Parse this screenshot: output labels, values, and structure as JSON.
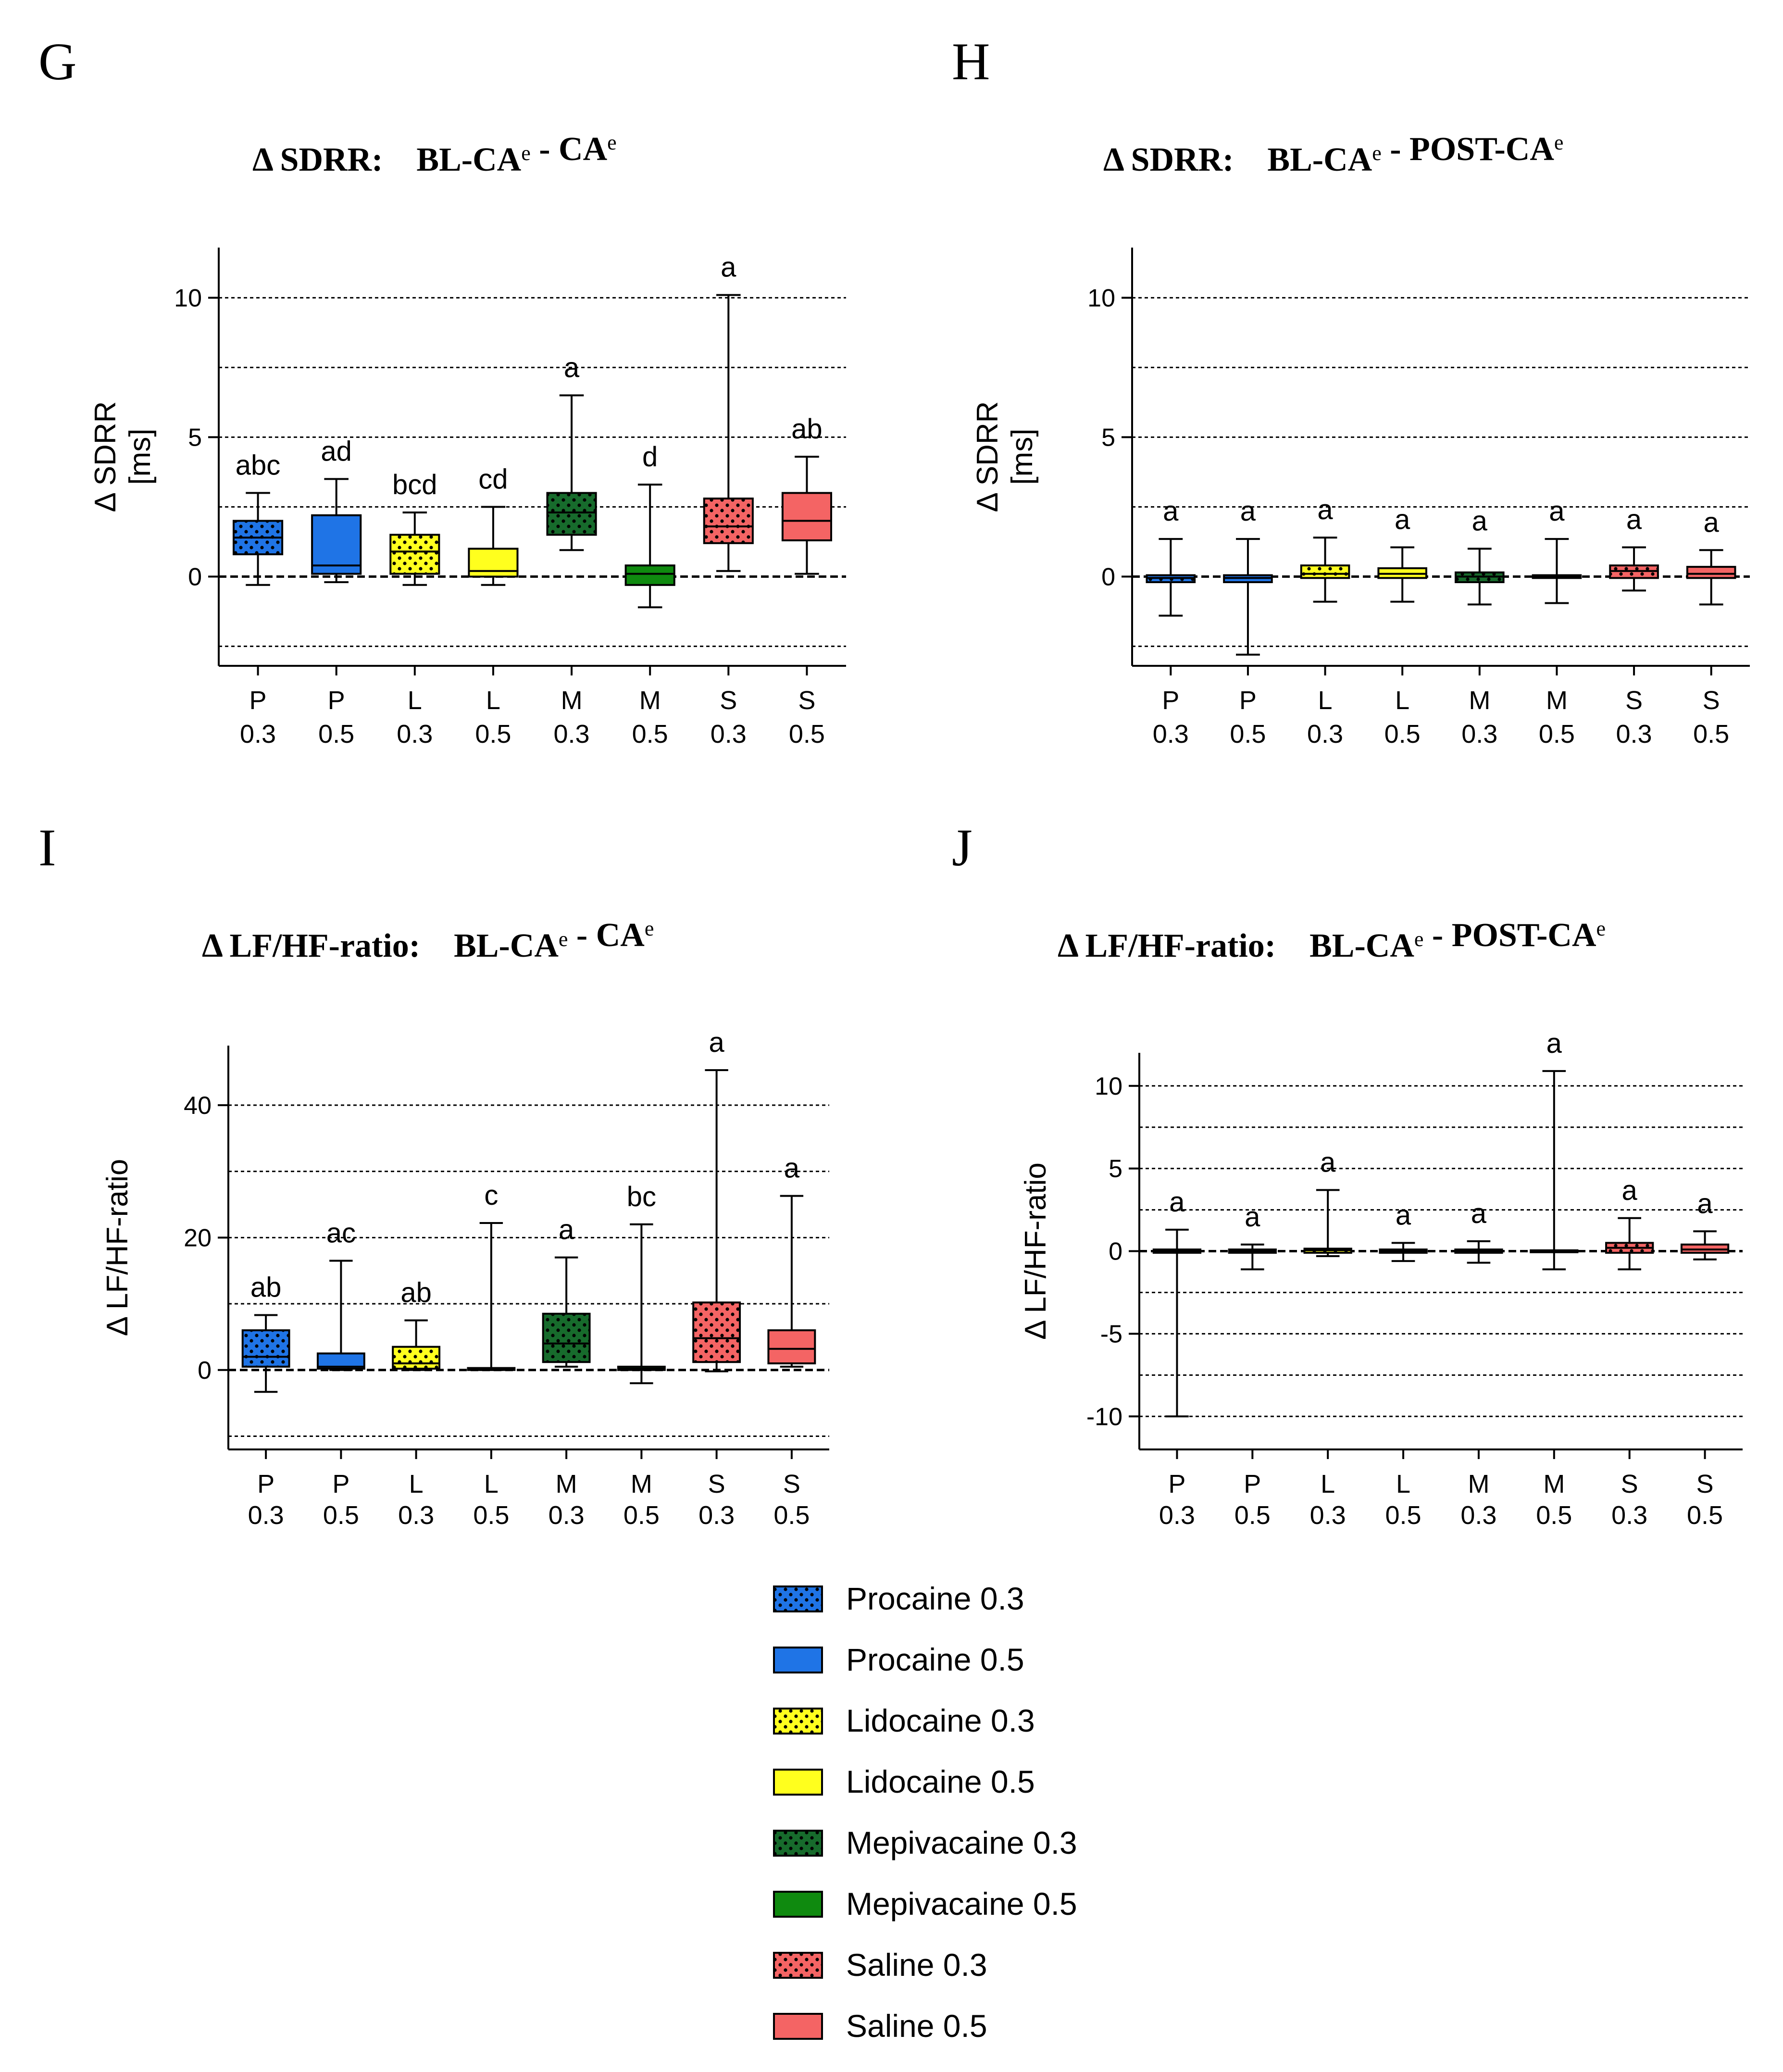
{
  "colors": {
    "procaine": "#1f74e6",
    "lidocaine": "#ffff1e",
    "mepivacaine_03": "#176b2c",
    "mepivacaine_05": "#0f8a0f",
    "saline": "#f46464",
    "grid": "#000000"
  },
  "legend": [
    {
      "label": "Procaine 0.3",
      "color": "#1f74e6",
      "dotted": true
    },
    {
      "label": "Procaine 0.5",
      "color": "#1f74e6",
      "dotted": false
    },
    {
      "label": "Lidocaine 0.3",
      "color": "#ffff1e",
      "dotted": true
    },
    {
      "label": "Lidocaine 0.5",
      "color": "#ffff1e",
      "dotted": false
    },
    {
      "label": "Mepivacaine 0.3",
      "color": "#176b2c",
      "dotted": true
    },
    {
      "label": "Mepivacaine 0.5",
      "color": "#0f8a0f",
      "dotted": false
    },
    {
      "label": "Saline 0.3",
      "color": "#f46464",
      "dotted": true
    },
    {
      "label": "Saline 0.5",
      "color": "#f46464",
      "dotted": false
    }
  ],
  "chart_data": [
    {
      "panel": "G",
      "type": "box",
      "title_main": "Δ SDRR:",
      "title_parts": [
        {
          "t": "BL-CA",
          "sup": "e"
        },
        {
          "t": " - CA",
          "sup": "e"
        }
      ],
      "ylabel_line1": "Δ SDRR",
      "ylabel_line2": "[ms]",
      "ylim": [
        -3.2,
        11.8
      ],
      "yticks": [
        0,
        5,
        10
      ],
      "ytick_labels": [
        "0",
        "5",
        "10"
      ],
      "gridlines": [
        -2.5,
        2.5,
        5,
        7.5,
        10
      ],
      "categories": [
        [
          "P",
          "0.3"
        ],
        [
          "P",
          "0.5"
        ],
        [
          "L",
          "0.3"
        ],
        [
          "L",
          "0.5"
        ],
        [
          "M",
          "0.3"
        ],
        [
          "M",
          "0.5"
        ],
        [
          "S",
          "0.3"
        ],
        [
          "S",
          "0.5"
        ]
      ],
      "boxes": [
        {
          "min": -0.3,
          "q1": 0.8,
          "median": 1.4,
          "q3": 2.0,
          "max": 3.0,
          "label": "abc"
        },
        {
          "min": -0.2,
          "q1": 0.1,
          "median": 0.4,
          "q3": 2.2,
          "max": 3.5,
          "label": "ad"
        },
        {
          "min": -0.3,
          "q1": 0.1,
          "median": 0.9,
          "q3": 1.5,
          "max": 2.3,
          "label": "bcd"
        },
        {
          "min": -0.3,
          "q1": 0.0,
          "median": 0.2,
          "q3": 1.0,
          "max": 2.5,
          "label": "cd"
        },
        {
          "min": 0.95,
          "q1": 1.5,
          "median": 2.3,
          "q3": 3.0,
          "max": 6.5,
          "label": "a"
        },
        {
          "min": -1.1,
          "q1": -0.3,
          "median": 0.1,
          "q3": 0.4,
          "max": 3.3,
          "label": "d"
        },
        {
          "min": 0.2,
          "q1": 1.2,
          "median": 1.8,
          "q3": 2.8,
          "max": 10.1,
          "label": "a"
        },
        {
          "min": 0.1,
          "q1": 1.3,
          "median": 2.0,
          "q3": 3.0,
          "max": 4.3,
          "label": "ab"
        }
      ]
    },
    {
      "panel": "H",
      "type": "box",
      "title_main": "Δ SDRR:",
      "title_parts": [
        {
          "t": "BL-CA",
          "sup": "e"
        },
        {
          "t": " - POST-CA",
          "sup": "e"
        }
      ],
      "ylabel_line1": "Δ SDRR",
      "ylabel_line2": "[ms]",
      "ylim": [
        -3.2,
        11.8
      ],
      "yticks": [
        0,
        5,
        10
      ],
      "ytick_labels": [
        "0",
        "5",
        "10"
      ],
      "gridlines": [
        -2.5,
        2.5,
        5,
        7.5,
        10
      ],
      "categories": [
        [
          "P",
          "0.3"
        ],
        [
          "P",
          "0.5"
        ],
        [
          "L",
          "0.3"
        ],
        [
          "L",
          "0.5"
        ],
        [
          "M",
          "0.3"
        ],
        [
          "M",
          "0.5"
        ],
        [
          "S",
          "0.3"
        ],
        [
          "S",
          "0.5"
        ]
      ],
      "boxes": [
        {
          "min": -1.4,
          "q1": -0.2,
          "median": -0.05,
          "q3": 0.05,
          "max": 1.35,
          "label": "a"
        },
        {
          "min": -2.8,
          "q1": -0.2,
          "median": -0.05,
          "q3": 0.05,
          "max": 1.35,
          "label": "a"
        },
        {
          "min": -0.9,
          "q1": -0.05,
          "median": 0.1,
          "q3": 0.4,
          "max": 1.4,
          "label": "a"
        },
        {
          "min": -0.9,
          "q1": -0.05,
          "median": 0.1,
          "q3": 0.3,
          "max": 1.05,
          "label": "a"
        },
        {
          "min": -1.0,
          "q1": -0.2,
          "median": 0.0,
          "q3": 0.15,
          "max": 1.0,
          "label": "a"
        },
        {
          "min": -0.95,
          "q1": -0.05,
          "median": 0.0,
          "q3": 0.05,
          "max": 1.35,
          "label": "a"
        },
        {
          "min": -0.5,
          "q1": -0.05,
          "median": 0.2,
          "q3": 0.4,
          "max": 1.05,
          "label": "a"
        },
        {
          "min": -1.0,
          "q1": -0.05,
          "median": 0.1,
          "q3": 0.35,
          "max": 0.95,
          "label": "a"
        }
      ]
    },
    {
      "panel": "I",
      "type": "box",
      "title_main": "Δ LF/HF-ratio:",
      "title_parts": [
        {
          "t": "BL-CA",
          "sup": "e"
        },
        {
          "t": " - CA",
          "sup": "e"
        }
      ],
      "ylabel_line1": "Δ LF/HF-ratio",
      "ylabel_line2": "",
      "ylim": [
        -12,
        49
      ],
      "yticks": [
        0,
        20,
        40
      ],
      "ytick_labels": [
        "0",
        "20",
        "40"
      ],
      "gridlines": [
        -10,
        10,
        20,
        30,
        40
      ],
      "categories": [
        [
          "P",
          "0.3"
        ],
        [
          "P",
          "0.5"
        ],
        [
          "L",
          "0.3"
        ],
        [
          "L",
          "0.5"
        ],
        [
          "M",
          "0.3"
        ],
        [
          "M",
          "0.5"
        ],
        [
          "S",
          "0.3"
        ],
        [
          "S",
          "0.5"
        ]
      ],
      "boxes": [
        {
          "min": -3.3,
          "q1": 0.5,
          "median": 2.0,
          "q3": 6.0,
          "max": 8.3,
          "label": "ab"
        },
        {
          "min": 0.0,
          "q1": 0.2,
          "median": 0.5,
          "q3": 2.5,
          "max": 16.5,
          "label": "ac"
        },
        {
          "min": 0.0,
          "q1": 0.2,
          "median": 1.0,
          "q3": 3.5,
          "max": 7.5,
          "label": "ab"
        },
        {
          "min": 0.0,
          "q1": 0.0,
          "median": 0.1,
          "q3": 0.3,
          "max": 22.2,
          "label": "c"
        },
        {
          "min": 0.5,
          "q1": 1.2,
          "median": 4.0,
          "q3": 8.5,
          "max": 17.0,
          "label": "a"
        },
        {
          "min": -2.0,
          "q1": 0.0,
          "median": 0.2,
          "q3": 0.5,
          "max": 22.0,
          "label": "bc"
        },
        {
          "min": -0.2,
          "q1": 1.2,
          "median": 4.8,
          "q3": 10.2,
          "max": 45.3,
          "label": "a"
        },
        {
          "min": 0.5,
          "q1": 1.0,
          "median": 3.2,
          "q3": 6.0,
          "max": 26.3,
          "label": "a"
        }
      ]
    },
    {
      "panel": "J",
      "type": "box",
      "title_main": "Δ LF/HF-ratio:",
      "title_parts": [
        {
          "t": "BL-CA",
          "sup": "e"
        },
        {
          "t": " - POST-CA",
          "sup": "e"
        }
      ],
      "ylabel_line1": "Δ LF/HF-ratio",
      "ylabel_line2": "",
      "ylim": [
        -12,
        12
      ],
      "yticks": [
        -10,
        -5,
        0,
        5,
        10
      ],
      "ytick_labels": [
        "-10",
        "-5",
        "0",
        "5",
        "10"
      ],
      "gridlines": [
        -10,
        -7.5,
        -5,
        -2.5,
        2.5,
        5,
        7.5,
        10
      ],
      "categories": [
        [
          "P",
          "0.3"
        ],
        [
          "P",
          "0.5"
        ],
        [
          "L",
          "0.3"
        ],
        [
          "L",
          "0.5"
        ],
        [
          "M",
          "0.3"
        ],
        [
          "M",
          "0.5"
        ],
        [
          "S",
          "0.3"
        ],
        [
          "S",
          "0.5"
        ]
      ],
      "boxes": [
        {
          "min": -10.0,
          "q1": -0.1,
          "median": 0.0,
          "q3": 0.1,
          "max": 1.3,
          "label": "a"
        },
        {
          "min": -1.1,
          "q1": -0.1,
          "median": 0.0,
          "q3": 0.1,
          "max": 0.4,
          "label": "a"
        },
        {
          "min": -0.3,
          "q1": -0.1,
          "median": 0.05,
          "q3": 0.15,
          "max": 3.7,
          "label": "a"
        },
        {
          "min": -0.6,
          "q1": -0.1,
          "median": 0.0,
          "q3": 0.1,
          "max": 0.5,
          "label": "a"
        },
        {
          "min": -0.7,
          "q1": -0.1,
          "median": 0.0,
          "q3": 0.1,
          "max": 0.6,
          "label": "a"
        },
        {
          "min": -1.1,
          "q1": -0.05,
          "median": 0.0,
          "q3": 0.05,
          "max": 10.9,
          "label": "a"
        },
        {
          "min": -1.1,
          "q1": -0.1,
          "median": 0.2,
          "q3": 0.5,
          "max": 2.0,
          "label": "a"
        },
        {
          "min": -0.5,
          "q1": -0.1,
          "median": 0.1,
          "q3": 0.4,
          "max": 1.2,
          "label": "a"
        }
      ]
    }
  ]
}
